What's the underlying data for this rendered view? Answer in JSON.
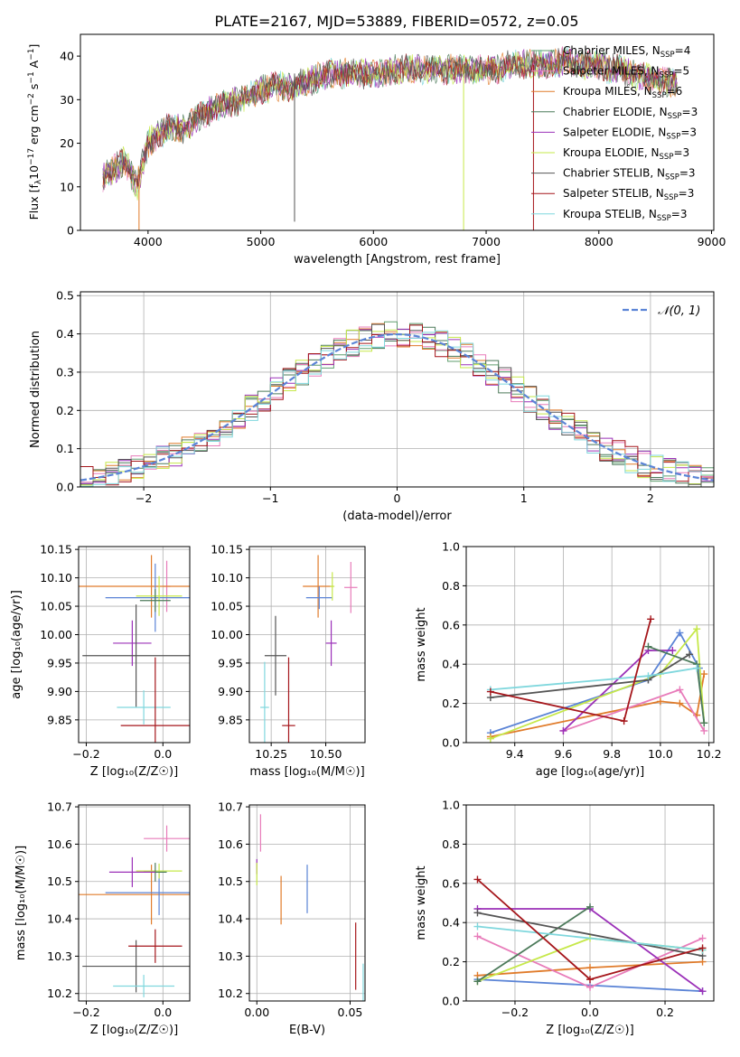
{
  "figure": {
    "title": "PLATE=2167, MJD=53889, FIBERID=0572, z=0.05"
  },
  "colors": {
    "chabrier_miles": "#5f9e6e",
    "salpeter_miles": "#e87cba",
    "kroupa_miles": "#e07b2a",
    "chabrier_elodie": "#4c7a5a",
    "salpeter_elodie": "#9b30b8",
    "kroupa_elodie": "#c6e84a",
    "chabrier_stelib": "#555555",
    "salpeter_stelib": "#a5161b",
    "kroupa_stelib": "#7fd7dd",
    "normal_curve": "#5b84d6",
    "blue_model": "#5b84d6"
  },
  "chart_data": [
    {
      "id": "spectrum",
      "type": "line",
      "xlabel": "wavelength [Angstrom, rest frame]",
      "xlim": [
        3400,
        9020
      ],
      "ylim": [
        0,
        45
      ],
      "xticks": [
        4000,
        5000,
        6000,
        7000,
        8000,
        9000
      ],
      "yticks": [
        0,
        10,
        20,
        30,
        40
      ],
      "legend_position": "right",
      "legend": [
        {
          "name": "Chabrier MILES",
          "nssp": "4",
          "color_key": "chabrier_miles"
        },
        {
          "name": "Salpeter MILES",
          "nssp": "5",
          "color_key": "salpeter_miles"
        },
        {
          "name": "Kroupa MILES",
          "nssp": "6",
          "color_key": "kroupa_miles"
        },
        {
          "name": "Chabrier ELODIE",
          "nssp": "3",
          "color_key": "chabrier_elodie"
        },
        {
          "name": "Salpeter ELODIE",
          "nssp": "3",
          "color_key": "salpeter_elodie"
        },
        {
          "name": "Kroupa ELODIE",
          "nssp": "3",
          "color_key": "kroupa_elodie"
        },
        {
          "name": "Chabrier STELIB",
          "nssp": "3",
          "color_key": "chabrier_stelib"
        },
        {
          "name": "Salpeter STELIB",
          "nssp": "3",
          "color_key": "salpeter_stelib"
        },
        {
          "name": "Kroupa STELIB",
          "nssp": "3",
          "color_key": "kroupa_stelib"
        }
      ],
      "continuum": {
        "x": [
          3600,
          3700,
          3800,
          3900,
          4000,
          4100,
          4200,
          4300,
          4400,
          4500,
          4600,
          4700,
          4800,
          4900,
          5000,
          5100,
          5200,
          5300,
          5400,
          5500,
          5600,
          5700,
          5800,
          5900,
          6000,
          6100,
          6200,
          6300,
          6400,
          6500,
          6600,
          6700,
          6800,
          6900,
          7000,
          7100,
          7200,
          7300,
          7400,
          7500,
          7600,
          7700,
          7800,
          7900,
          8000,
          8100,
          8200,
          8300,
          8400,
          8500,
          8600,
          8700
        ],
        "y": [
          12,
          14,
          16,
          10,
          20,
          22,
          24,
          23,
          25,
          27,
          28,
          29,
          30,
          31,
          32,
          33,
          33,
          33,
          34,
          35,
          36,
          36,
          36,
          36,
          36,
          36,
          37,
          37,
          37,
          37,
          37,
          37,
          37,
          37,
          37,
          37,
          38,
          38,
          38,
          38,
          38,
          39,
          38,
          38,
          38,
          37,
          37,
          36,
          35,
          35,
          34,
          34
        ]
      },
      "spikes": [
        {
          "x": 3920,
          "ymin": 0,
          "ymax": 14,
          "color_key": "kroupa_miles"
        },
        {
          "x": 5300,
          "ymin": 2,
          "ymax": 36,
          "color_key": "chabrier_stelib"
        },
        {
          "x": 6800,
          "ymin": 0,
          "ymax": 38,
          "color_key": "kroupa_elodie"
        },
        {
          "x": 7420,
          "ymin": 0,
          "ymax": 38,
          "color_key": "salpeter_stelib"
        }
      ]
    },
    {
      "id": "residuals",
      "type": "line",
      "xlabel": "(data-model)/error",
      "ylabel": "Normed distribution",
      "xlim": [
        -2.5,
        2.5
      ],
      "ylim": [
        0,
        0.51
      ],
      "xticks": [
        -2,
        -1,
        0,
        1,
        2
      ],
      "yticks": [
        0.0,
        0.1,
        0.2,
        0.3,
        0.4,
        0.5
      ],
      "grid": true,
      "legend_position": "top-right",
      "normal_label": "𝒩(0, 1)",
      "bin_width": 0.1
    },
    {
      "id": "age_vs_Z",
      "type": "scatter",
      "xlabel": "Z [log₁₀(Z/Z☉)]",
      "ylabel": "age  [log₁₀(age/yr)]",
      "xlim": [
        -0.22,
        0.07
      ],
      "ylim": [
        9.81,
        10.155
      ],
      "xticks": [
        -0.2,
        0.0
      ],
      "yticks": [
        9.85,
        9.9,
        9.95,
        10.0,
        10.05,
        10.1,
        10.15
      ],
      "grid": true,
      "points": [
        {
          "x": 0.01,
          "y": 10.085,
          "xerr": 0.01,
          "yerr": 0.045,
          "color_key": "salpeter_miles"
        },
        {
          "x": -0.03,
          "y": 10.085,
          "xerr": 0.2,
          "yerr": 0.055,
          "color_key": "kroupa_miles"
        },
        {
          "x": -0.02,
          "y": 10.065,
          "xerr": 0.13,
          "yerr": 0.06,
          "color_key": "blue_model"
        },
        {
          "x": -0.01,
          "y": 10.068,
          "xerr": 0.06,
          "yerr": 0.035,
          "color_key": "kroupa_elodie"
        },
        {
          "x": -0.02,
          "y": 10.06,
          "xerr": 0.04,
          "yerr": 0.02,
          "color_key": "chabrier_elodie"
        },
        {
          "x": -0.08,
          "y": 9.985,
          "xerr": 0.05,
          "yerr": 0.04,
          "color_key": "salpeter_elodie"
        },
        {
          "x": -0.07,
          "y": 9.963,
          "xerr": 0.14,
          "yerr": 0.09,
          "color_key": "chabrier_stelib"
        },
        {
          "x": -0.05,
          "y": 9.872,
          "xerr": 0.07,
          "yerr": 0.03,
          "color_key": "kroupa_stelib"
        },
        {
          "x": -0.02,
          "y": 9.84,
          "xerr": 0.09,
          "yerr": 0.12,
          "color_key": "salpeter_stelib"
        }
      ]
    },
    {
      "id": "age_vs_mass",
      "type": "scatter",
      "xlabel": "mass [log₁₀(M/M☉)]",
      "xlim": [
        10.15,
        10.68
      ],
      "ylim": [
        9.81,
        10.155
      ],
      "xticks": [
        10.25,
        10.5
      ],
      "yticks": [
        9.85,
        9.9,
        9.95,
        10.0,
        10.05,
        10.1,
        10.15
      ],
      "grid": true,
      "points": [
        {
          "x": 10.615,
          "y": 10.083,
          "xerr": 0.03,
          "yerr": 0.045,
          "color_key": "salpeter_miles"
        },
        {
          "x": 10.465,
          "y": 10.085,
          "xerr": 0.07,
          "yerr": 0.055,
          "color_key": "kroupa_miles"
        },
        {
          "x": 10.47,
          "y": 10.065,
          "xerr": 0.06,
          "yerr": 0.02,
          "color_key": "blue_model"
        },
        {
          "x": 10.53,
          "y": 10.085,
          "xerr": 0.01,
          "yerr": 0.025,
          "color_key": "kroupa_elodie"
        },
        {
          "x": 10.525,
          "y": 9.985,
          "xerr": 0.025,
          "yerr": 0.04,
          "color_key": "salpeter_elodie"
        },
        {
          "x": 10.27,
          "y": 9.963,
          "xerr": 0.05,
          "yerr": 0.07,
          "color_key": "chabrier_stelib"
        },
        {
          "x": 10.22,
          "y": 9.872,
          "xerr": 0.02,
          "yerr": 0.08,
          "color_key": "kroupa_stelib"
        },
        {
          "x": 10.33,
          "y": 9.84,
          "xerr": 0.03,
          "yerr": 0.12,
          "color_key": "salpeter_stelib"
        }
      ]
    },
    {
      "id": "massweight_vs_age",
      "type": "line",
      "xlabel": "age  [log₁₀(age/yr)]",
      "ylabel": "mass weight",
      "xlim": [
        9.2,
        10.22
      ],
      "ylim": [
        0,
        1
      ],
      "xticks": [
        9.4,
        9.6,
        9.8,
        10.0,
        10.2
      ],
      "yticks": [
        0.0,
        0.2,
        0.4,
        0.6,
        0.8,
        1.0
      ],
      "grid": true,
      "series": [
        {
          "color_key": "blue_model",
          "x": [
            9.3,
            9.95,
            10.08,
            10.16,
            10.18
          ],
          "y": [
            0.05,
            0.32,
            0.56,
            0.38,
            0.1
          ]
        },
        {
          "color_key": "kroupa_miles",
          "x": [
            9.3,
            10.0,
            10.08,
            10.15,
            10.18
          ],
          "y": [
            0.03,
            0.21,
            0.2,
            0.14,
            0.35
          ]
        },
        {
          "color_key": "salpeter_miles",
          "x": [
            9.6,
            10.08,
            10.18
          ],
          "y": [
            0.06,
            0.27,
            0.06
          ]
        },
        {
          "color_key": "salpeter_elodie",
          "x": [
            9.6,
            9.95,
            10.05
          ],
          "y": [
            0.06,
            0.47,
            0.47
          ]
        },
        {
          "color_key": "kroupa_elodie",
          "x": [
            9.3,
            10.0,
            10.15,
            10.18
          ],
          "y": [
            0.02,
            0.35,
            0.58,
            0.1
          ]
        },
        {
          "color_key": "chabrier_elodie",
          "x": [
            9.95,
            10.15,
            10.18
          ],
          "y": [
            0.49,
            0.4,
            0.1
          ]
        },
        {
          "color_key": "chabrier_stelib",
          "x": [
            9.3,
            9.95,
            10.12
          ],
          "y": [
            0.23,
            0.32,
            0.45
          ]
        },
        {
          "color_key": "kroupa_stelib",
          "x": [
            9.3,
            9.95,
            10.15
          ],
          "y": [
            0.27,
            0.34,
            0.38
          ]
        },
        {
          "color_key": "salpeter_stelib",
          "x": [
            9.3,
            9.85,
            9.96
          ],
          "y": [
            0.26,
            0.11,
            0.63
          ]
        }
      ]
    },
    {
      "id": "mass_vs_Z",
      "type": "scatter",
      "xlabel": "Z [log₁₀(Z/Z☉)]",
      "ylabel": "mass [log₁₀(M/M☉)]",
      "xlim": [
        -0.22,
        0.07
      ],
      "ylim": [
        10.18,
        10.705
      ],
      "xticks": [
        -0.2,
        0.0
      ],
      "yticks": [
        10.2,
        10.3,
        10.4,
        10.5,
        10.6,
        10.7
      ],
      "grid": true,
      "points": [
        {
          "x": 0.01,
          "y": 10.615,
          "xerr": 0.06,
          "yerr": 0.035,
          "color_key": "salpeter_miles"
        },
        {
          "x": -0.03,
          "y": 10.465,
          "xerr": 0.2,
          "yerr": 0.08,
          "color_key": "kroupa_miles"
        },
        {
          "x": -0.01,
          "y": 10.47,
          "xerr": 0.14,
          "yerr": 0.06,
          "color_key": "blue_model"
        },
        {
          "x": -0.01,
          "y": 10.528,
          "xerr": 0.06,
          "yerr": 0.02,
          "color_key": "kroupa_elodie"
        },
        {
          "x": -0.02,
          "y": 10.525,
          "xerr": 0.03,
          "yerr": 0.025,
          "color_key": "chabrier_elodie"
        },
        {
          "x": -0.08,
          "y": 10.525,
          "xerr": 0.06,
          "yerr": 0.04,
          "color_key": "salpeter_elodie"
        },
        {
          "x": -0.07,
          "y": 10.273,
          "xerr": 0.14,
          "yerr": 0.07,
          "color_key": "chabrier_stelib"
        },
        {
          "x": -0.05,
          "y": 10.22,
          "xerr": 0.08,
          "yerr": 0.03,
          "color_key": "kroupa_stelib"
        },
        {
          "x": -0.02,
          "y": 10.327,
          "xerr": 0.07,
          "yerr": 0.045,
          "color_key": "salpeter_stelib"
        }
      ]
    },
    {
      "id": "mass_vs_ebv",
      "type": "scatter",
      "xlabel": "E(B-V)",
      "xlim": [
        -0.004,
        0.058
      ],
      "ylim": [
        10.18,
        10.705
      ],
      "xticks": [
        0.0,
        0.05
      ],
      "yticks": [
        10.2,
        10.3,
        10.4,
        10.5,
        10.6,
        10.7
      ],
      "grid": true,
      "points": [
        {
          "x": 0.002,
          "y": 10.63,
          "xerr": 0,
          "yerr": 0.05,
          "color_key": "salpeter_miles"
        },
        {
          "x": 0.0,
          "y": 10.54,
          "xerr": 0,
          "yerr": 0.02,
          "color_key": "salpeter_elodie"
        },
        {
          "x": 0.0,
          "y": 10.52,
          "xerr": 0,
          "yerr": 0.03,
          "color_key": "kroupa_elodie"
        },
        {
          "x": 0.013,
          "y": 10.45,
          "xerr": 0,
          "yerr": 0.065,
          "color_key": "kroupa_miles"
        },
        {
          "x": 0.027,
          "y": 10.48,
          "xerr": 0,
          "yerr": 0.065,
          "color_key": "blue_model"
        },
        {
          "x": 0.053,
          "y": 10.3,
          "xerr": 0,
          "yerr": 0.09,
          "color_key": "salpeter_stelib"
        },
        {
          "x": 0.057,
          "y": 10.23,
          "xerr": 0,
          "yerr": 0.05,
          "color_key": "kroupa_stelib"
        }
      ]
    },
    {
      "id": "massweight_vs_Z",
      "type": "line",
      "xlabel": "Z [log₁₀(Z/Z☉)]",
      "ylabel": "mass weight",
      "xlim": [
        -0.33,
        0.33
      ],
      "ylim": [
        0,
        1
      ],
      "xticks": [
        -0.2,
        0.0,
        0.2
      ],
      "yticks": [
        0.0,
        0.2,
        0.4,
        0.6,
        0.8,
        1.0
      ],
      "grid": true,
      "series": [
        {
          "color_key": "blue_model",
          "x": [
            -0.3,
            0.0,
            0.3
          ],
          "y": [
            0.11,
            0.08,
            0.05
          ]
        },
        {
          "color_key": "kroupa_miles",
          "x": [
            -0.3,
            0.0,
            0.3
          ],
          "y": [
            0.13,
            0.17,
            0.2
          ]
        },
        {
          "color_key": "salpeter_miles",
          "x": [
            -0.3,
            0.0,
            0.3
          ],
          "y": [
            0.33,
            0.07,
            0.32
          ]
        },
        {
          "color_key": "salpeter_elodie",
          "x": [
            -0.3,
            0.0,
            0.3
          ],
          "y": [
            0.47,
            0.47,
            0.05
          ]
        },
        {
          "color_key": "kroupa_elodie",
          "x": [
            -0.3,
            0.0,
            0.3
          ],
          "y": [
            0.1,
            0.32,
            0.26
          ]
        },
        {
          "color_key": "chabrier_elodie",
          "x": [
            -0.3,
            0.0
          ],
          "y": [
            0.1,
            0.48
          ]
        },
        {
          "color_key": "chabrier_stelib",
          "x": [
            -0.3,
            0.3
          ],
          "y": [
            0.45,
            0.23
          ]
        },
        {
          "color_key": "kroupa_stelib",
          "x": [
            -0.3,
            0.3
          ],
          "y": [
            0.38,
            0.26
          ]
        },
        {
          "color_key": "salpeter_stelib",
          "x": [
            -0.3,
            0.0,
            0.3
          ],
          "y": [
            0.62,
            0.11,
            0.27
          ]
        }
      ]
    }
  ]
}
